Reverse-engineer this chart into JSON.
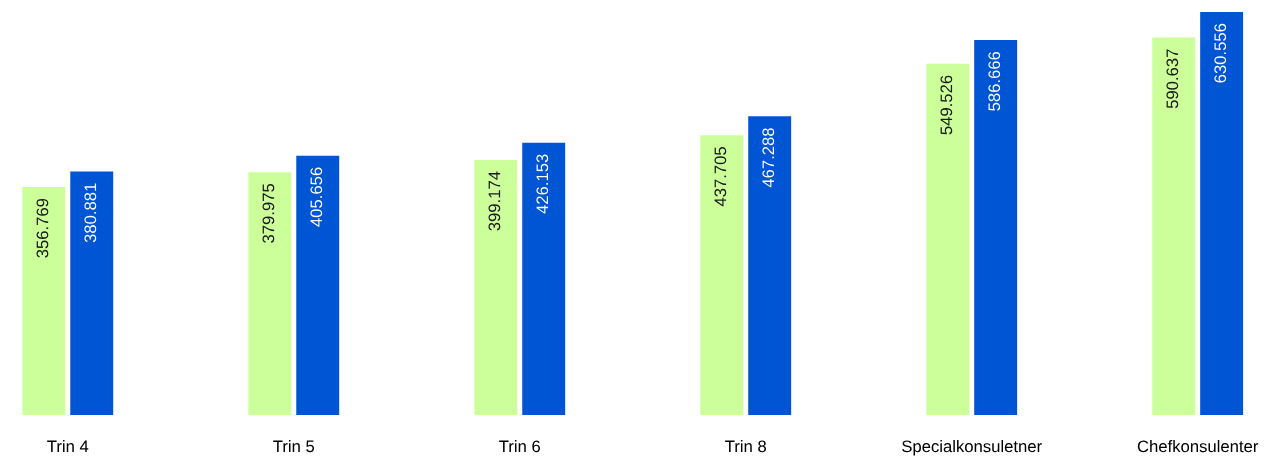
{
  "chart_data": {
    "type": "bar",
    "categories": [
      "Trin 4",
      "Trin 5",
      "Trin 6",
      "Trin 8",
      "Specialkonsuletner",
      "Chefkonsulenter"
    ],
    "series": [
      {
        "color": "#ccff99",
        "values": [
          356769,
          379975,
          399174,
          437705,
          549526,
          590637
        ],
        "value_labels": [
          "356.769",
          "379.975",
          "399.174",
          "437.705",
          "549.526",
          "590.637"
        ]
      },
      {
        "color": "#0055d4",
        "values": [
          380881,
          405656,
          426153,
          467288,
          586666,
          630556
        ],
        "value_labels": [
          "380.881",
          "405.656",
          "426.153",
          "467.288",
          "586.666",
          "630.556"
        ]
      }
    ],
    "grid": false,
    "legend": false
  }
}
